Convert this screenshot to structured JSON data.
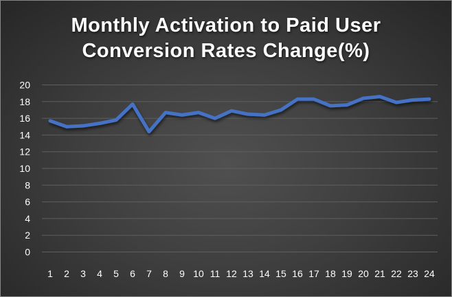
{
  "chart_data": {
    "type": "line",
    "title": [
      "Monthly Activation to Paid User",
      "Conversion Rates Change(%)"
    ],
    "xlabel": "",
    "ylabel": "",
    "categories": [
      1,
      2,
      3,
      4,
      5,
      6,
      7,
      8,
      9,
      10,
      11,
      12,
      13,
      14,
      15,
      16,
      17,
      18,
      19,
      20,
      21,
      22,
      23,
      24
    ],
    "series": [
      {
        "values": [
          15.7,
          15.0,
          15.1,
          15.4,
          15.8,
          17.7,
          14.4,
          16.7,
          16.4,
          16.7,
          16.0,
          16.9,
          16.5,
          16.4,
          17.0,
          18.3,
          18.3,
          17.5,
          17.6,
          18.4,
          18.6,
          17.9,
          18.2,
          18.3
        ]
      }
    ],
    "ylim": [
      0,
      20
    ],
    "yticks": [
      0,
      2,
      4,
      6,
      8,
      10,
      12,
      14,
      16,
      18,
      20
    ],
    "grid": true,
    "legend": "none",
    "colors": {
      "line": "#4472C4",
      "background": "#404040",
      "grid": "#5f5f5f",
      "text": "#ffffff"
    }
  }
}
